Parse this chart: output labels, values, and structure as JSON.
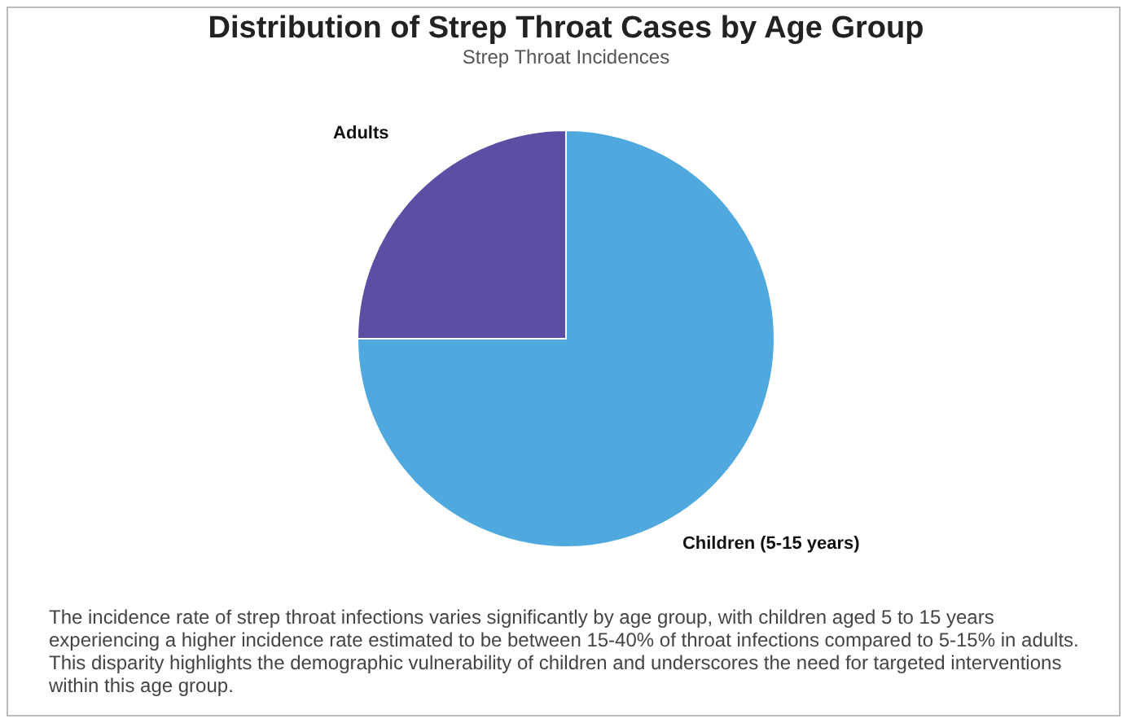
{
  "chart_data": {
    "type": "pie",
    "title": "Distribution of Strep Throat Cases by Age Group",
    "subtitle": "Strep Throat Incidences",
    "categories": [
      "Children (5-15 years)",
      "Adults"
    ],
    "values": [
      75,
      25
    ],
    "colors": [
      "#4fa9df",
      "#5b4fa3"
    ],
    "legend": false,
    "annotations": [
      "The incidence rate of strep throat infections varies significantly by age group, with children aged 5 to 15 years experiencing a higher incidence rate estimated to be between 15-40% of throat infections compared to 5-15% in adults. This disparity highlights the demographic vulnerability of children and underscores the need for targeted interventions within this age group."
    ]
  }
}
